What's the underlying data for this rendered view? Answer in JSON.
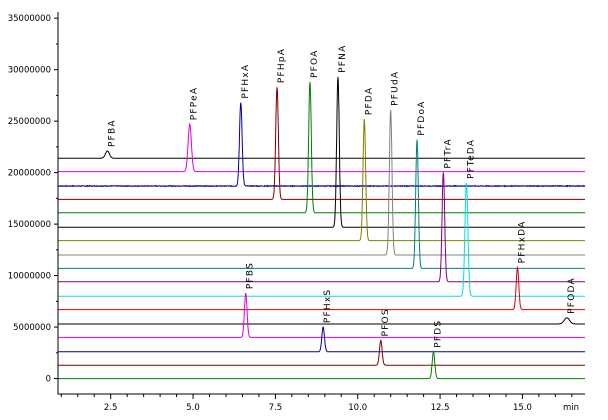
{
  "chart_data": {
    "type": "line",
    "xunit": "min",
    "xlim": [
      0.9,
      16.9
    ],
    "ylim": [
      -1500000,
      35600000
    ],
    "xticks": [
      2.5,
      5.0,
      7.5,
      10.0,
      12.5,
      15.0
    ],
    "xtick_labels": [
      "2.5",
      "5.0",
      "7.5",
      "10.0",
      "12.5",
      "15.0"
    ],
    "yticks": [
      0,
      5000000,
      10000000,
      15000000,
      20000000,
      25000000,
      30000000,
      35000000
    ],
    "ytick_labels": [
      "0",
      "5000000",
      "10000000",
      "15000000",
      "20000000",
      "25000000",
      "30000000",
      "35000000"
    ],
    "series": [
      {
        "name": "PFBA",
        "color": "#000000",
        "baseline": 21400000,
        "rt": 2.4,
        "peak": 22100000,
        "width": 0.06,
        "noise": 0
      },
      {
        "name": "PFPeA",
        "color": "#e000e0",
        "baseline": 20100000,
        "rt": 4.9,
        "peak": 24700000,
        "width": 0.05,
        "noise": 0
      },
      {
        "name": "PFHxA",
        "color": "#0000a0",
        "baseline": 18700000,
        "rt": 6.45,
        "peak": 26800000,
        "width": 0.04,
        "noise": 70000
      },
      {
        "name": "PFHpA",
        "color": "#800000",
        "baseline": 17400000,
        "rt": 7.55,
        "peak": 28300000,
        "width": 0.04,
        "noise": 0
      },
      {
        "name": "PFOA",
        "color": "#008000",
        "baseline": 16100000,
        "rt": 8.55,
        "peak": 28800000,
        "width": 0.04,
        "noise": 0
      },
      {
        "name": "PFNA",
        "color": "#000000",
        "baseline": 14700000,
        "rt": 9.4,
        "peak": 29300000,
        "width": 0.04,
        "noise": 0
      },
      {
        "name": "PFDA",
        "color": "#808000",
        "baseline": 13400000,
        "rt": 10.2,
        "peak": 25200000,
        "width": 0.04,
        "noise": 0
      },
      {
        "name": "PFUdA",
        "color": "#808080",
        "baseline": 12000000,
        "rt": 11.0,
        "peak": 26100000,
        "width": 0.04,
        "noise": 0
      },
      {
        "name": "PFDoA",
        "color": "#008080",
        "baseline": 10700000,
        "rt": 11.8,
        "peak": 23200000,
        "width": 0.04,
        "noise": 0
      },
      {
        "name": "PFTrA",
        "color": "#800080",
        "baseline": 9400000,
        "rt": 12.6,
        "peak": 20000000,
        "width": 0.04,
        "noise": 0
      },
      {
        "name": "PFTeDA",
        "color": "#00e0e0",
        "baseline": 8000000,
        "rt": 13.3,
        "peak": 19000000,
        "width": 0.045,
        "noise": 0
      },
      {
        "name": "PFHxDA",
        "color": "#e00000",
        "baseline": 6700000,
        "rt": 14.85,
        "peak": 10800000,
        "width": 0.04,
        "noise": 0
      },
      {
        "name": "PFODA",
        "color": "#000000",
        "baseline": 5300000,
        "rt": 16.35,
        "peak": 5900000,
        "width": 0.08,
        "noise": 0
      },
      {
        "name": "PFBS",
        "color": "#e000e0",
        "baseline": 4000000,
        "rt": 6.6,
        "peak": 8300000,
        "width": 0.04,
        "noise": 0
      },
      {
        "name": "PFHxS",
        "color": "#0000a0",
        "baseline": 2600000,
        "rt": 8.95,
        "peak": 5000000,
        "width": 0.04,
        "noise": 0
      },
      {
        "name": "PFOS",
        "color": "#800000",
        "baseline": 1300000,
        "rt": 10.7,
        "peak": 3700000,
        "width": 0.04,
        "noise": 0
      },
      {
        "name": "PFDS",
        "color": "#008000",
        "baseline": 0,
        "rt": 12.3,
        "peak": 2600000,
        "width": 0.04,
        "noise": 0
      }
    ]
  }
}
